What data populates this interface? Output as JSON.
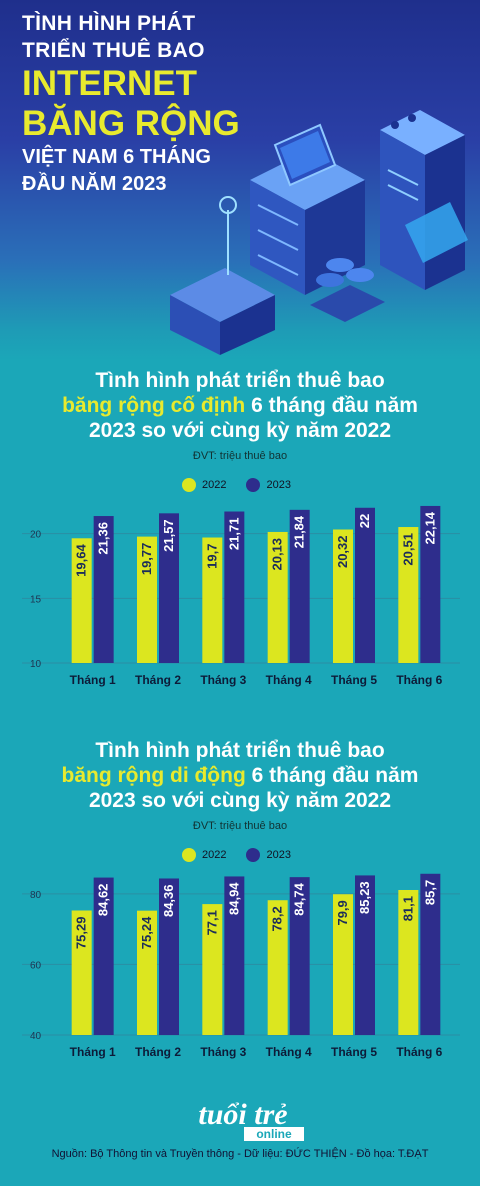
{
  "hero": {
    "line1": "TÌNH HÌNH PHÁT",
    "line2": "TRIỂN THUÊ BAO",
    "big1": "INTERNET",
    "big2": "BĂNG RỘNG",
    "sub1": "VIỆT NAM 6 THÁNG",
    "sub2": "ĐẦU NĂM 2023"
  },
  "section1": {
    "title_a": "Tình hình phát triển thuê bao",
    "title_hl": "băng rộng cố định",
    "title_b": " 6 tháng đầu năm",
    "title_c": "2023 so với cùng kỳ năm 2022",
    "unit": "ĐVT: triệu thuê bao"
  },
  "section2": {
    "title_a": "Tình hình phát triển thuê bao",
    "title_hl": "băng rộng di động",
    "title_b": " 6 tháng đầu năm",
    "title_c": "2023 so với cùng kỳ năm 2022",
    "unit": "ĐVT: triệu thuê bao"
  },
  "colors": {
    "y2022": "#dce61f",
    "y2023": "#2e2d8c"
  },
  "chart_data": [
    {
      "type": "bar",
      "title": "Tình hình phát triển thuê bao băng rộng cố định 6 tháng đầu năm 2023 so với cùng kỳ năm 2022",
      "categories": [
        "Tháng 1",
        "Tháng 2",
        "Tháng 3",
        "Tháng 4",
        "Tháng 5",
        "Tháng 6"
      ],
      "series": [
        {
          "name": "2022",
          "values": [
            19.64,
            19.77,
            19.7,
            20.13,
            20.32,
            20.51
          ],
          "labels": [
            "19,64",
            "19,77",
            "19,7",
            "20,13",
            "20,32",
            "20,51"
          ]
        },
        {
          "name": "2023",
          "values": [
            21.36,
            21.57,
            21.71,
            21.84,
            22,
            22.14
          ],
          "labels": [
            "21,36",
            "21,57",
            "21,71",
            "21,84",
            "22",
            "22,14"
          ]
        }
      ],
      "ylim": [
        10,
        22.6
      ],
      "yticks": [
        10,
        15,
        20
      ],
      "grid": true,
      "legend": "top-center"
    },
    {
      "type": "bar",
      "title": "Tình hình phát triển thuê bao băng rộng di động 6 tháng đầu năm 2023 so với cùng kỳ năm 2022",
      "categories": [
        "Tháng 1",
        "Tháng 2",
        "Tháng 3",
        "Tháng 4",
        "Tháng 5",
        "Tháng 6"
      ],
      "series": [
        {
          "name": "2022",
          "values": [
            75.29,
            75.24,
            77.1,
            78.2,
            79.9,
            81.1
          ],
          "labels": [
            "75,29",
            "75,24",
            "77,1",
            "78,2",
            "79,9",
            "81,1"
          ]
        },
        {
          "name": "2023",
          "values": [
            84.62,
            84.36,
            84.94,
            84.74,
            85.23,
            85.7
          ],
          "labels": [
            "84,62",
            "84,36",
            "84,94",
            "84,74",
            "85,23",
            "85,7"
          ]
        }
      ],
      "ylim": [
        40,
        86.2
      ],
      "yticks": [
        40,
        60,
        80
      ],
      "grid": true,
      "legend": "top-center"
    }
  ],
  "logo": {
    "top": "tuổi trẻ",
    "bottom": "online"
  },
  "footer": "Nguồn: Bộ Thông tin và Truyền thông - Dữ liệu: ĐỨC THIỆN - Đồ họa: T.ĐẠT"
}
